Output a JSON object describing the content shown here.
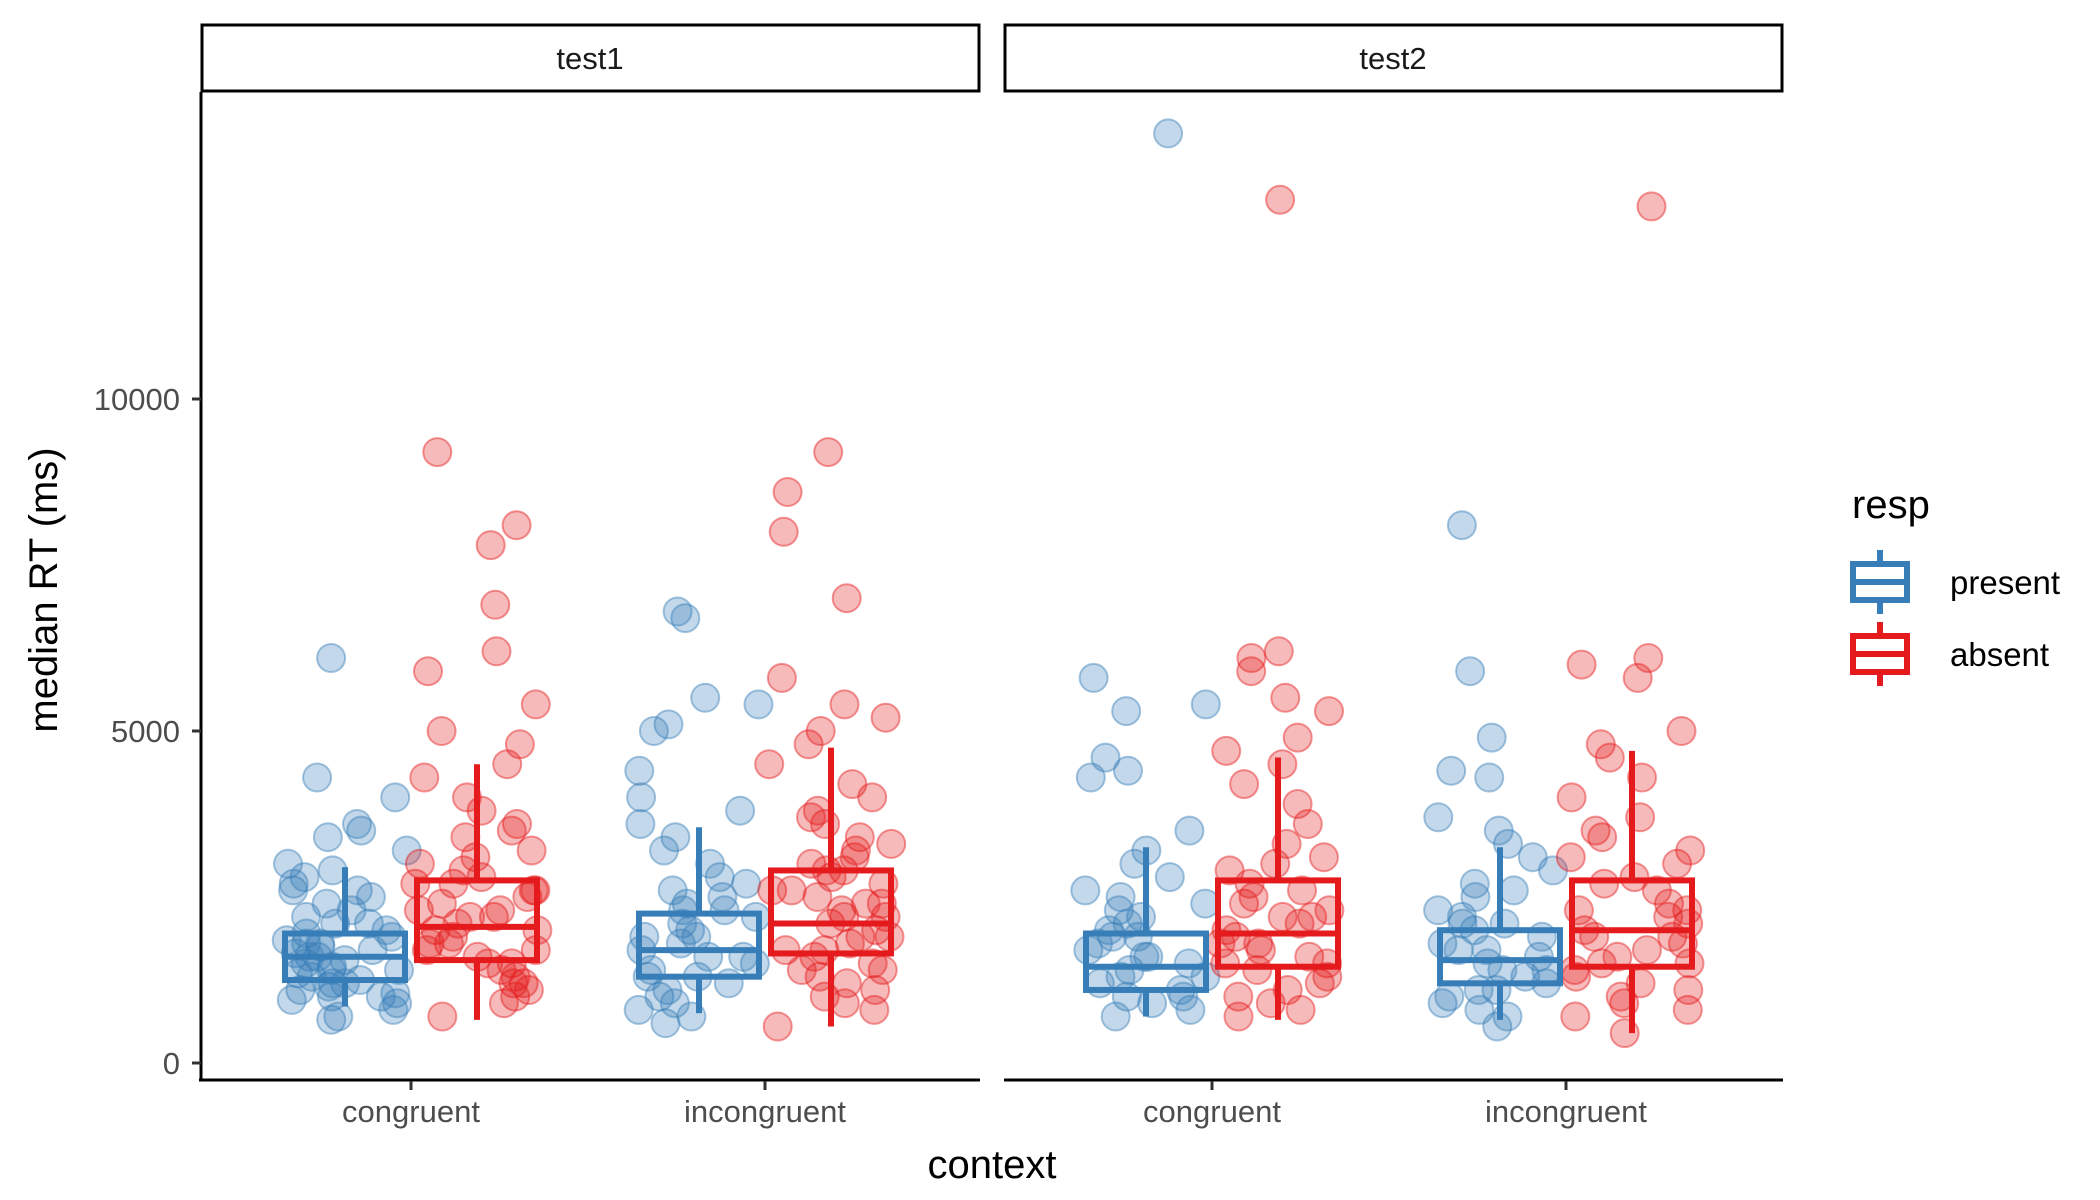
{
  "colors": {
    "present": "#377EB8",
    "absent": "#E41A1C",
    "axis": "#000000",
    "tick_text": "#4D4D4D"
  },
  "chart_data": {
    "type": "boxplot-jitter",
    "xlabel": "context",
    "ylabel": "median RT (ms)",
    "yticks": [
      0,
      5000,
      10000
    ],
    "ylim": [
      -200,
      14500
    ],
    "facets": [
      "test1",
      "test2"
    ],
    "categories": [
      "congruent",
      "incongruent"
    ],
    "legend": {
      "title": "resp",
      "position": "right",
      "entries": [
        "present",
        "absent"
      ]
    },
    "boxes": [
      {
        "facet": "test1",
        "context": "congruent",
        "resp": "present",
        "whisker_low": 850,
        "q1": 1250,
        "median": 1600,
        "q3": 1950,
        "whisker_high": 2950
      },
      {
        "facet": "test1",
        "context": "congruent",
        "resp": "absent",
        "whisker_low": 650,
        "q1": 1550,
        "median": 2050,
        "q3": 2750,
        "whisker_high": 4500
      },
      {
        "facet": "test1",
        "context": "incongruent",
        "resp": "present",
        "whisker_low": 750,
        "q1": 1300,
        "median": 1700,
        "q3": 2250,
        "whisker_high": 3550
      },
      {
        "facet": "test1",
        "context": "incongruent",
        "resp": "absent",
        "whisker_low": 550,
        "q1": 1650,
        "median": 2100,
        "q3": 2900,
        "whisker_high": 4750
      },
      {
        "facet": "test2",
        "context": "congruent",
        "resp": "present",
        "whisker_low": 700,
        "q1": 1100,
        "median": 1450,
        "q3": 1950,
        "whisker_high": 3250
      },
      {
        "facet": "test2",
        "context": "congruent",
        "resp": "absent",
        "whisker_low": 650,
        "q1": 1450,
        "median": 1950,
        "q3": 2750,
        "whisker_high": 4600
      },
      {
        "facet": "test2",
        "context": "incongruent",
        "resp": "present",
        "whisker_low": 650,
        "q1": 1200,
        "median": 1550,
        "q3": 2000,
        "whisker_high": 3250
      },
      {
        "facet": "test2",
        "context": "incongruent",
        "resp": "absent",
        "whisker_low": 450,
        "q1": 1450,
        "median": 2000,
        "q3": 2750,
        "whisker_high": 4700
      }
    ],
    "points": [
      {
        "facet": "test1",
        "context": "congruent",
        "resp": "present",
        "values": [
          800,
          900,
          950,
          1000,
          1050,
          1100,
          1150,
          1200,
          1250,
          1300,
          1350,
          1400,
          1450,
          1500,
          1550,
          1600,
          1650,
          1700,
          1750,
          1800,
          1850,
          1900,
          1950,
          2000,
          2100,
          2200,
          2300,
          2400,
          2500,
          2600,
          2700,
          2800,
          2900,
          3000,
          3200,
          3400,
          3500,
          3600,
          4000,
          4300,
          6100,
          700,
          650,
          1000,
          1200,
          1400,
          1600,
          1800,
          2100,
          2600
        ]
      },
      {
        "facet": "test1",
        "context": "congruent",
        "resp": "absent",
        "values": [
          700,
          900,
          1000,
          1100,
          1200,
          1300,
          1400,
          1500,
          1600,
          1700,
          1800,
          1900,
          2000,
          2100,
          2200,
          2300,
          2400,
          2500,
          2600,
          2700,
          2800,
          2900,
          3000,
          3200,
          3400,
          3600,
          3800,
          4000,
          4300,
          4500,
          4800,
          5000,
          5400,
          5900,
          6200,
          6900,
          7800,
          8100,
          9200,
          1500,
          1800,
          2000,
          2300,
          2600,
          3100,
          3500,
          1200,
          1700,
          2200,
          2700
        ]
      },
      {
        "facet": "test1",
        "context": "incongruent",
        "resp": "present",
        "values": [
          600,
          700,
          800,
          900,
          1000,
          1100,
          1200,
          1300,
          1400,
          1500,
          1600,
          1700,
          1800,
          1900,
          2000,
          2100,
          2200,
          2300,
          2400,
          2500,
          2600,
          2700,
          2800,
          3000,
          3200,
          3400,
          3600,
          3800,
          4000,
          4400,
          5000,
          5100,
          5400,
          5500,
          6700,
          6800,
          1300,
          1600,
          1900,
          2300
        ]
      },
      {
        "facet": "test1",
        "context": "incongruent",
        "resp": "absent",
        "values": [
          550,
          800,
          900,
          1000,
          1100,
          1200,
          1300,
          1400,
          1500,
          1600,
          1700,
          1800,
          1900,
          2000,
          2100,
          2200,
          2300,
          2400,
          2500,
          2600,
          2700,
          2800,
          2900,
          3000,
          3200,
          3400,
          3600,
          3800,
          4000,
          4200,
          4500,
          4800,
          5000,
          5200,
          5400,
          5800,
          7000,
          8000,
          8600,
          9200,
          1400,
          1900,
          2400,
          2900,
          3300,
          3700,
          1700,
          2200,
          2600,
          3100
        ]
      },
      {
        "facet": "test2",
        "context": "congruent",
        "resp": "present",
        "values": [
          700,
          800,
          900,
          1000,
          1100,
          1200,
          1300,
          1400,
          1500,
          1600,
          1700,
          1800,
          1900,
          2000,
          2100,
          2200,
          2300,
          2400,
          2600,
          2800,
          3000,
          3200,
          3500,
          4300,
          4400,
          4600,
          5300,
          5400,
          5800,
          14000,
          1000,
          1300,
          1600,
          1900,
          2500
        ]
      },
      {
        "facet": "test2",
        "context": "congruent",
        "resp": "absent",
        "values": [
          700,
          800,
          900,
          1000,
          1100,
          1200,
          1300,
          1400,
          1500,
          1600,
          1700,
          1800,
          1900,
          2000,
          2100,
          2200,
          2300,
          2400,
          2500,
          2700,
          2900,
          3100,
          3300,
          3600,
          3900,
          4200,
          4500,
          4700,
          4900,
          5300,
          5500,
          5900,
          6100,
          6200,
          13000,
          1500,
          1800,
          2200,
          2600,
          3000
        ]
      },
      {
        "facet": "test2",
        "context": "incongruent",
        "resp": "present",
        "values": [
          550,
          700,
          800,
          900,
          1000,
          1100,
          1200,
          1300,
          1400,
          1500,
          1600,
          1700,
          1800,
          1900,
          2000,
          2100,
          2200,
          2300,
          2500,
          2700,
          2900,
          3100,
          3300,
          3500,
          3700,
          4300,
          4400,
          4900,
          5900,
          8100,
          1100,
          1400,
          1700,
          2100,
          2600
        ]
      },
      {
        "facet": "test2",
        "context": "incongruent",
        "resp": "absent",
        "values": [
          450,
          700,
          800,
          900,
          1000,
          1100,
          1200,
          1300,
          1400,
          1500,
          1600,
          1700,
          1800,
          1900,
          2000,
          2100,
          2200,
          2300,
          2400,
          2600,
          2800,
          3000,
          3200,
          3400,
          3700,
          4000,
          4300,
          4600,
          4800,
          5000,
          5800,
          6000,
          6100,
          12900,
          1500,
          1900,
          2300,
          2700,
          3100,
          3500
        ]
      }
    ]
  }
}
